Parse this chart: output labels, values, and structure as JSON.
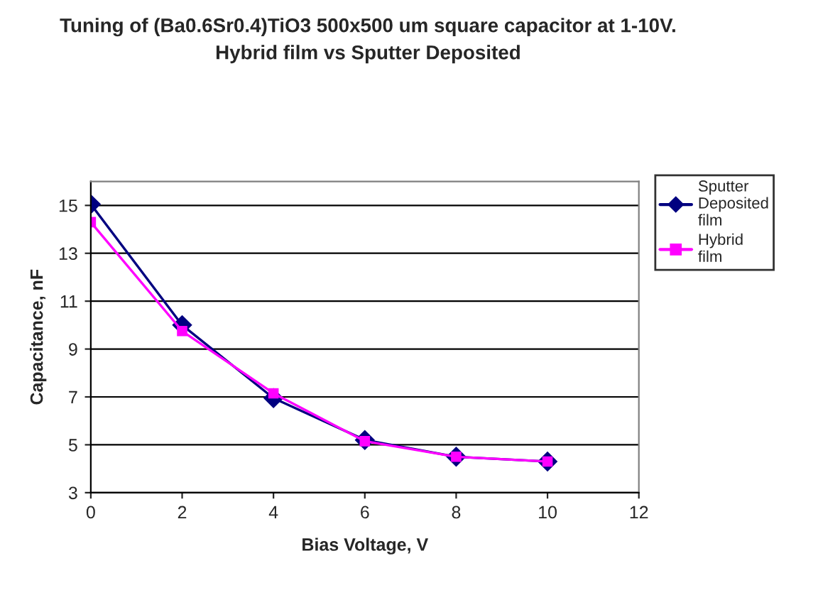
{
  "chart_data": {
    "type": "line",
    "title": "Tuning of (Ba0.6Sr0.4)TiO3 500x500 um square capacitor at 1-10V.\nHybrid film vs Sputter Deposited",
    "xlabel": "Bias Voltage, V",
    "ylabel": "Capacitance, nF",
    "x": [
      0,
      2,
      4,
      6,
      8,
      10
    ],
    "series": [
      {
        "name": "Sputter Deposited film",
        "color": "#000080",
        "values": [
          15.05,
          10.0,
          6.95,
          5.2,
          4.5,
          4.3
        ],
        "marker": "diamond"
      },
      {
        "name": "Hybrid film",
        "color": "#ff00ff",
        "values": [
          14.3,
          9.75,
          7.15,
          5.15,
          4.5,
          4.3
        ],
        "marker": "square"
      }
    ],
    "xlim": [
      0,
      12
    ],
    "xticks": [
      0,
      2,
      4,
      6,
      8,
      10,
      12
    ],
    "ylim": [
      3,
      16
    ],
    "yticks": [
      3,
      5,
      7,
      9,
      11,
      13,
      15
    ],
    "grid": "y",
    "legend": "top right",
    "line_style": "solid"
  }
}
